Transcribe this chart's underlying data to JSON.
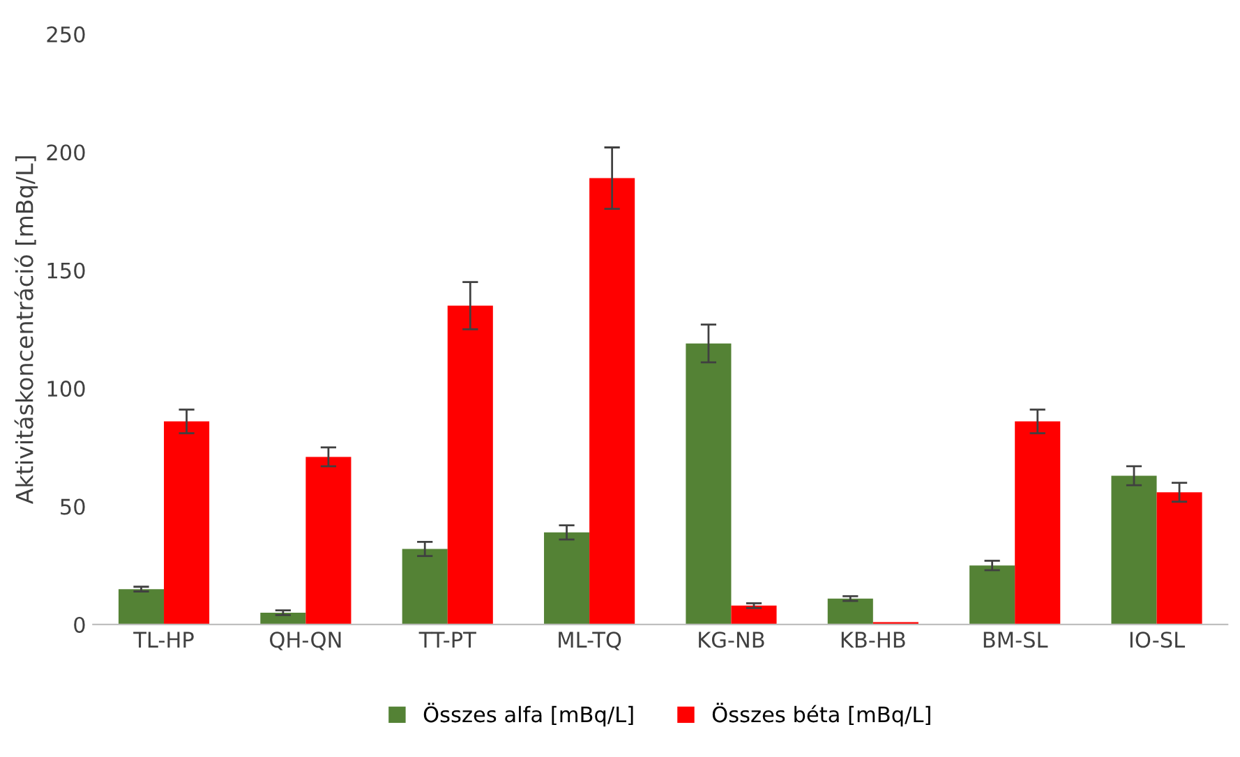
{
  "chart_data": {
    "type": "bar",
    "ylabel": "Aktivitáskoncentráció [mBq/L]",
    "categories": [
      "TL-HP",
      "QH-QN",
      "TT-PT",
      "ML-TQ",
      "KG-NB",
      "KB-HB",
      "BM-SL",
      "IO-SL"
    ],
    "series": [
      {
        "name": "Összes alfa [mBq/L]",
        "color": "#548235",
        "values": [
          15,
          5,
          32,
          39,
          119,
          11,
          25,
          63
        ],
        "errors": [
          1,
          1,
          3,
          3,
          8,
          1,
          2,
          4
        ]
      },
      {
        "name": "Összes béta [mBq/L]",
        "color": "#ff0000",
        "values": [
          86,
          71,
          135,
          189,
          8,
          1,
          86,
          56
        ],
        "errors": [
          5,
          4,
          10,
          13,
          1,
          null,
          5,
          4
        ]
      }
    ],
    "ylim": [
      0,
      250
    ],
    "yticks": [
      0,
      50,
      100,
      150,
      200,
      250
    ],
    "grid": false,
    "legend": "bottom"
  }
}
